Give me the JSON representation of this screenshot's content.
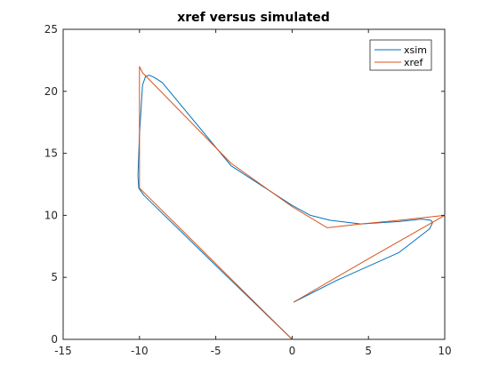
{
  "chart_data": {
    "type": "line",
    "title": "xref versus simulated",
    "xlabel": "",
    "ylabel": "",
    "xlim": [
      -15,
      10
    ],
    "ylim": [
      0,
      25
    ],
    "xticks": [
      -15,
      -10,
      -5,
      0,
      5,
      10
    ],
    "yticks": [
      0,
      5,
      10,
      15,
      20,
      25
    ],
    "grid": false,
    "legend_position": "top-right",
    "series": [
      {
        "name": "xsim",
        "color": "#0072bd",
        "x": [
          0,
          -4.2,
          -9.7,
          -10.05,
          -10.1,
          -10.0,
          -9.8,
          -9.6,
          -9.35,
          -9.0,
          -8.5,
          -4.0,
          0.0,
          1.2,
          2.5,
          4.5,
          7.0,
          8.5,
          9.1,
          9.2,
          9.0,
          7.0,
          3.0,
          0.1
        ],
        "y": [
          0,
          5.0,
          11.6,
          12.2,
          13.2,
          16.5,
          20.5,
          21.2,
          21.3,
          21.1,
          20.7,
          14.0,
          10.8,
          10.0,
          9.6,
          9.3,
          9.5,
          9.7,
          9.6,
          9.4,
          8.9,
          7.0,
          4.8,
          3.0
        ]
      },
      {
        "name": "xref",
        "color": "#d95319",
        "x": [
          0,
          -10.0,
          -10.0,
          -10.0,
          -10.0,
          -10.0,
          -9.8,
          -4.0,
          0.0,
          2.3,
          4.5,
          7.0,
          10.0,
          10.0,
          5.0,
          0.1
        ],
        "y": [
          0,
          12.2,
          12.2,
          16.5,
          21.0,
          22.0,
          21.5,
          14.2,
          10.7,
          9.0,
          9.3,
          9.6,
          10.0,
          10.0,
          6.5,
          3.0
        ]
      }
    ]
  }
}
